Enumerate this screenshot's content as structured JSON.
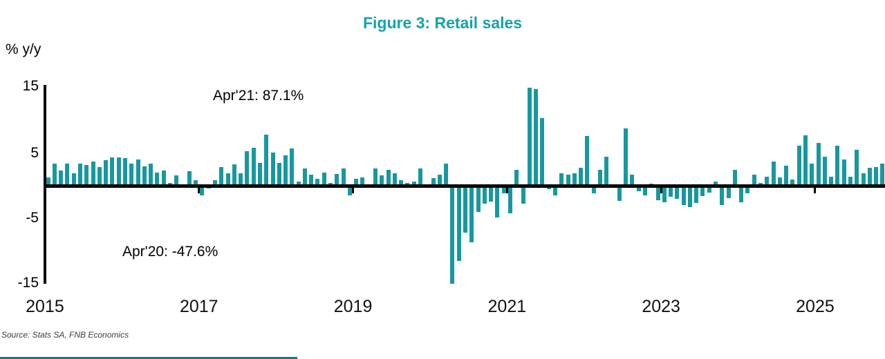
{
  "title": "Figure 3: Retail sales",
  "y_axis_unit_label": "% y/y",
  "annotations": {
    "apr21": "Apr'21: 87.1%",
    "apr20": "Apr'20: -47.6%"
  },
  "source": "Source: Stats SA, FNB Economics",
  "colors": {
    "bar_teal": "#17989f",
    "title_teal": "#14a3aa",
    "axis_black": "#000000",
    "year_label": "#111111",
    "source_gray": "#3d3d3d",
    "footer_teal": "#117a80"
  },
  "chart_data": {
    "type": "bar",
    "title": "Figure 3: Retail sales",
    "ylabel": "% y/y",
    "start_month": "2015-01",
    "end_month": "2025-11",
    "frequency": "monthly",
    "ylim": [
      -15,
      15
    ],
    "y_ticks": [
      15,
      5,
      -5,
      -15
    ],
    "x_tick_labels": [
      "2015",
      "2017",
      "2019",
      "2021",
      "2023",
      "2025"
    ],
    "grid": false,
    "legend": "none",
    "clipped_outliers": {
      "2020-04": -47.6,
      "2021-04": 87.1
    },
    "values": [
      1.3,
      3.4,
      2.3,
      3.4,
      1.9,
      3.4,
      3.2,
      3.7,
      2.9,
      3.9,
      4.3,
      4.3,
      4.2,
      3.4,
      4.0,
      3.0,
      3.4,
      2.0,
      2.3,
      0.4,
      1.6,
      0.1,
      2.2,
      0.8,
      -1.5,
      -0.4,
      0.9,
      2.9,
      1.9,
      3.3,
      1.9,
      5.3,
      5.8,
      3.5,
      7.8,
      5.1,
      3.5,
      4.7,
      5.7,
      0.6,
      2.7,
      1.7,
      1.1,
      2.0,
      0.4,
      1.8,
      2.7,
      -1.5,
      1.1,
      1.3,
      0.2,
      2.6,
      1.6,
      2.4,
      1.9,
      0.9,
      0.4,
      0.6,
      2.7,
      0.1,
      1.2,
      1.7,
      3.4,
      -47.6,
      -11.6,
      -7.2,
      -8.7,
      -4.0,
      -2.8,
      -2.4,
      -4.9,
      -1.2,
      -4.2,
      2.4,
      -2.8,
      87.1,
      14.8,
      10.4,
      -0.5,
      -1.5,
      1.9,
      1.7,
      1.9,
      2.8,
      7.6,
      -1.2,
      2.4,
      4.4,
      0.1,
      -2.3,
      8.8,
      1.7,
      -0.9,
      -1.5,
      0.3,
      -2.2,
      -2.5,
      -1.7,
      -2.0,
      -3.0,
      -3.3,
      -2.6,
      -1.6,
      -1.1,
      0.6,
      -3.0,
      -1.9,
      2.4,
      -2.5,
      -1.2,
      1.7,
      0.4,
      1.4,
      3.7,
      1.3,
      3.1,
      1.0,
      6.2,
      7.7,
      3.4,
      6.6,
      4.5,
      1.4,
      6.1,
      4.0,
      1.4,
      5.5,
      1.9,
      2.8,
      2.9,
      3.4
    ]
  }
}
